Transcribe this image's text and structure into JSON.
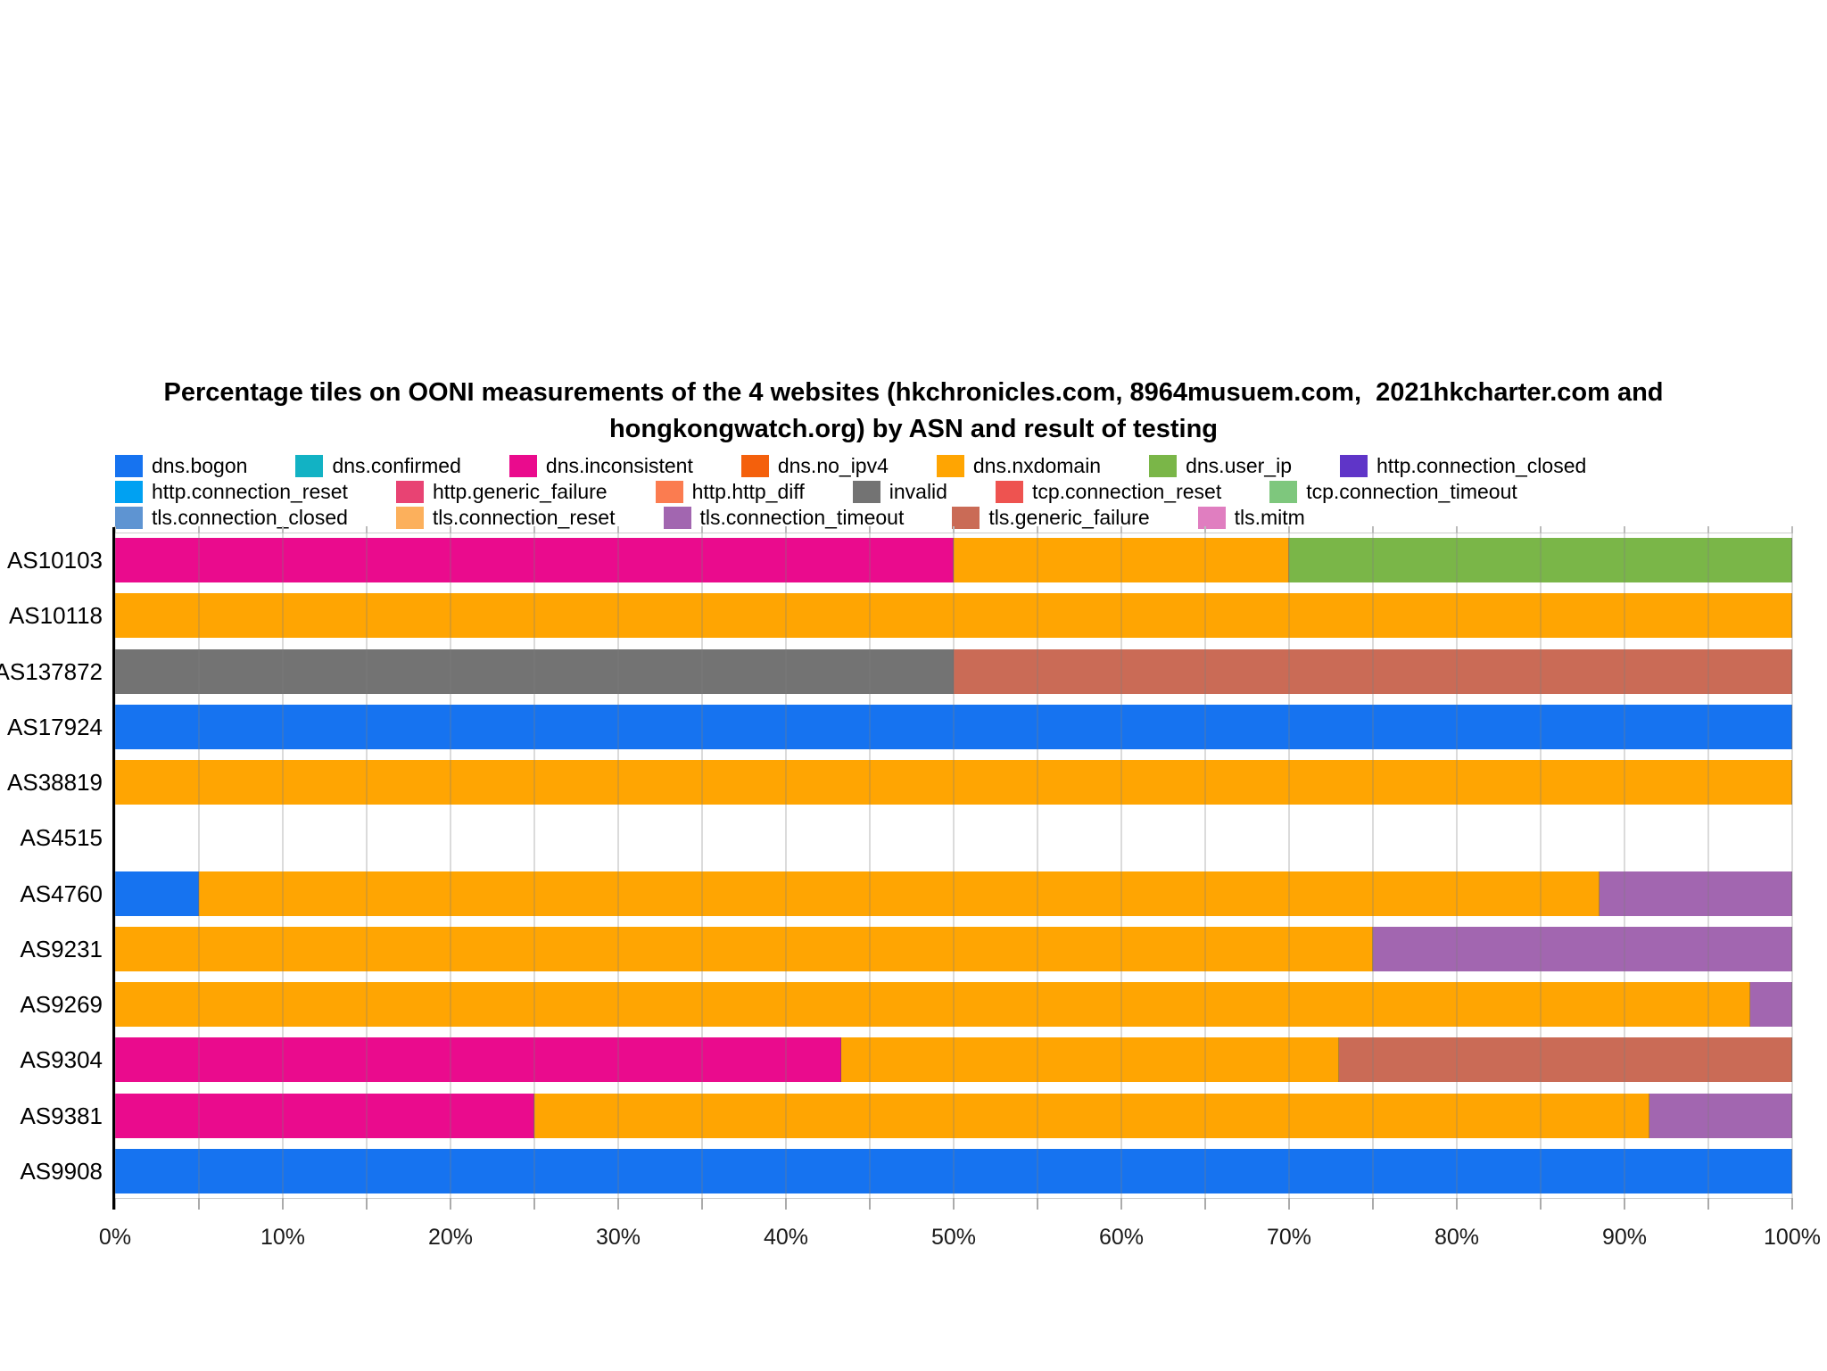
{
  "title": "Percentage tiles on OONI measurements of the 4 websites (hkchronicles.com, 8964musuem.com,  2021hkcharter.com and\nhongkongwatch.org) by ASN and result of testing",
  "legend_rows": [
    [
      {
        "label": "dns.bogon",
        "color": "#1673f0"
      },
      {
        "label": "dns.confirmed",
        "color": "#12b2c4"
      },
      {
        "label": "dns.inconsistent",
        "color": "#ea0b8d"
      },
      {
        "label": "dns.no_ipv4",
        "color": "#f4600c"
      },
      {
        "label": "dns.nxdomain",
        "color": "#ffa502"
      },
      {
        "label": "dns.user_ip",
        "color": "#7ab648"
      },
      {
        "label": "http.connection_closed",
        "color": "#5f35c8"
      }
    ],
    [
      {
        "label": "http.connection_reset",
        "color": "#00a1f2"
      },
      {
        "label": "http.generic_failure",
        "color": "#e84373"
      },
      {
        "label": "http.http_diff",
        "color": "#fb7c50"
      },
      {
        "label": "invalid",
        "color": "#737373"
      },
      {
        "label": "tcp.connection_reset",
        "color": "#ee5350"
      },
      {
        "label": "tcp.connection_timeout",
        "color": "#7ec77d"
      }
    ],
    [
      {
        "label": "tls.connection_closed",
        "color": "#5e94d2"
      },
      {
        "label": "tls.connection_reset",
        "color": "#fcb05c"
      },
      {
        "label": "tls.connection_timeout",
        "color": "#a266b0"
      },
      {
        "label": "tls.generic_failure",
        "color": "#ca6b56"
      },
      {
        "label": "tls.mitm",
        "color": "#e07ec0"
      }
    ]
  ],
  "chart_data": {
    "type": "bar",
    "orientation": "horizontal_stacked",
    "title": "Percentage tiles on OONI measurements of the 4 websites (hkchronicles.com, 8964musuem.com, 2021hkcharter.com and hongkongwatch.org) by ASN and result of testing",
    "xlabel": "",
    "ylabel": "",
    "x_axis": {
      "min": 0,
      "max": 100,
      "unit": "%",
      "label_step": 10,
      "grid_step": 5,
      "tick_labels": [
        "0%",
        "10%",
        "20%",
        "30%",
        "40%",
        "50%",
        "60%",
        "70%",
        "80%",
        "90%",
        "100%"
      ]
    },
    "grid": true,
    "legend_position": "top",
    "categories": [
      "AS10103",
      "AS10118",
      "AS137872",
      "AS17924",
      "AS38819",
      "AS4515",
      "AS4760",
      "AS9231",
      "AS9269",
      "AS9304",
      "AS9381",
      "AS9908"
    ],
    "rows": [
      {
        "asn": "AS10103",
        "segments": [
          {
            "key": "dns.inconsistent",
            "value": 50
          },
          {
            "key": "dns.nxdomain",
            "value": 20
          },
          {
            "key": "dns.user_ip",
            "value": 30
          }
        ]
      },
      {
        "asn": "AS10118",
        "segments": [
          {
            "key": "dns.nxdomain",
            "value": 100
          }
        ]
      },
      {
        "asn": "AS137872",
        "segments": [
          {
            "key": "invalid",
            "value": 50
          },
          {
            "key": "tls.generic_failure",
            "value": 50
          }
        ]
      },
      {
        "asn": "AS17924",
        "segments": [
          {
            "key": "dns.bogon",
            "value": 100
          }
        ]
      },
      {
        "asn": "AS38819",
        "segments": [
          {
            "key": "dns.nxdomain",
            "value": 100
          }
        ]
      },
      {
        "asn": "AS4515",
        "segments": []
      },
      {
        "asn": "AS4760",
        "segments": [
          {
            "key": "dns.bogon",
            "value": 5
          },
          {
            "key": "dns.nxdomain",
            "value": 83.5
          },
          {
            "key": "tls.connection_timeout",
            "value": 11.5
          }
        ]
      },
      {
        "asn": "AS9231",
        "segments": [
          {
            "key": "dns.nxdomain",
            "value": 75
          },
          {
            "key": "tls.connection_timeout",
            "value": 25
          }
        ]
      },
      {
        "asn": "AS9269",
        "segments": [
          {
            "key": "dns.nxdomain",
            "value": 97.5
          },
          {
            "key": "tls.connection_timeout",
            "value": 2.5
          }
        ]
      },
      {
        "asn": "AS9304",
        "segments": [
          {
            "key": "dns.inconsistent",
            "value": 43.3
          },
          {
            "key": "dns.nxdomain",
            "value": 29.7
          },
          {
            "key": "tls.generic_failure",
            "value": 27
          }
        ]
      },
      {
        "asn": "AS9381",
        "segments": [
          {
            "key": "dns.inconsistent",
            "value": 25
          },
          {
            "key": "dns.nxdomain",
            "value": 66.5
          },
          {
            "key": "tls.connection_timeout",
            "value": 8.5
          }
        ]
      },
      {
        "asn": "AS9908",
        "segments": [
          {
            "key": "dns.bogon",
            "value": 100
          }
        ]
      }
    ]
  }
}
